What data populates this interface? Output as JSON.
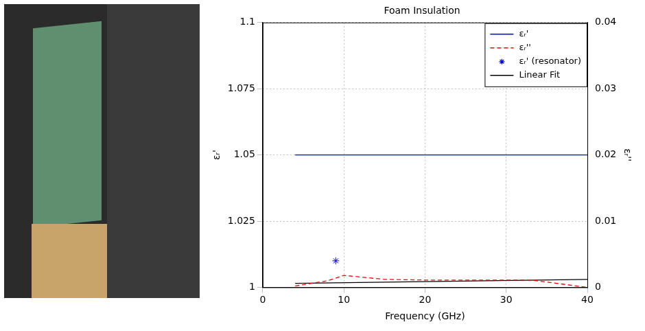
{
  "chart_data": {
    "type": "line",
    "title": "Foam Insulation",
    "x_label": "Frequency (GHz)",
    "y_label": "εᵣ'",
    "y2_label": "εᵣ''",
    "xlim": [
      0,
      40
    ],
    "xticks": [
      0,
      10,
      20,
      30,
      40
    ],
    "ylim": [
      1,
      1.1
    ],
    "yticks": [
      1,
      1.025,
      1.05,
      1.075,
      1.1
    ],
    "y2lim": [
      0,
      0.04
    ],
    "y2ticks": [
      0,
      0.01,
      0.02,
      0.03,
      0.04
    ],
    "grid": true,
    "legend": "upper right",
    "series": [
      {
        "name": "εᵣ'",
        "color": "#0000ff",
        "type": "line",
        "line_style": "solid",
        "axis": "y",
        "x": [
          4,
          40
        ],
        "values": [
          1.05,
          1.05
        ]
      },
      {
        "name": "εᵣ''",
        "color": "#ff0000",
        "type": "line",
        "line_style": "dashed",
        "axis": "y2",
        "x": [
          4,
          8,
          10,
          15,
          20,
          26.5,
          33,
          40
        ],
        "values": [
          0.0002,
          0.001,
          0.0018,
          0.0012,
          0.0011,
          0.0011,
          0.0011,
          0
        ]
      },
      {
        "name": "εᵣ' (resonator)",
        "color": "#0000ff",
        "type": "scatter",
        "marker": "star",
        "axis": "y",
        "x": [
          9
        ],
        "values": [
          1.01
        ]
      },
      {
        "name": "Linear Fit",
        "color": "#000000",
        "type": "line",
        "line_style": "solid",
        "axis": "y2",
        "x": [
          4,
          40
        ],
        "values": [
          0.0006,
          0.0012
        ]
      }
    ]
  }
}
